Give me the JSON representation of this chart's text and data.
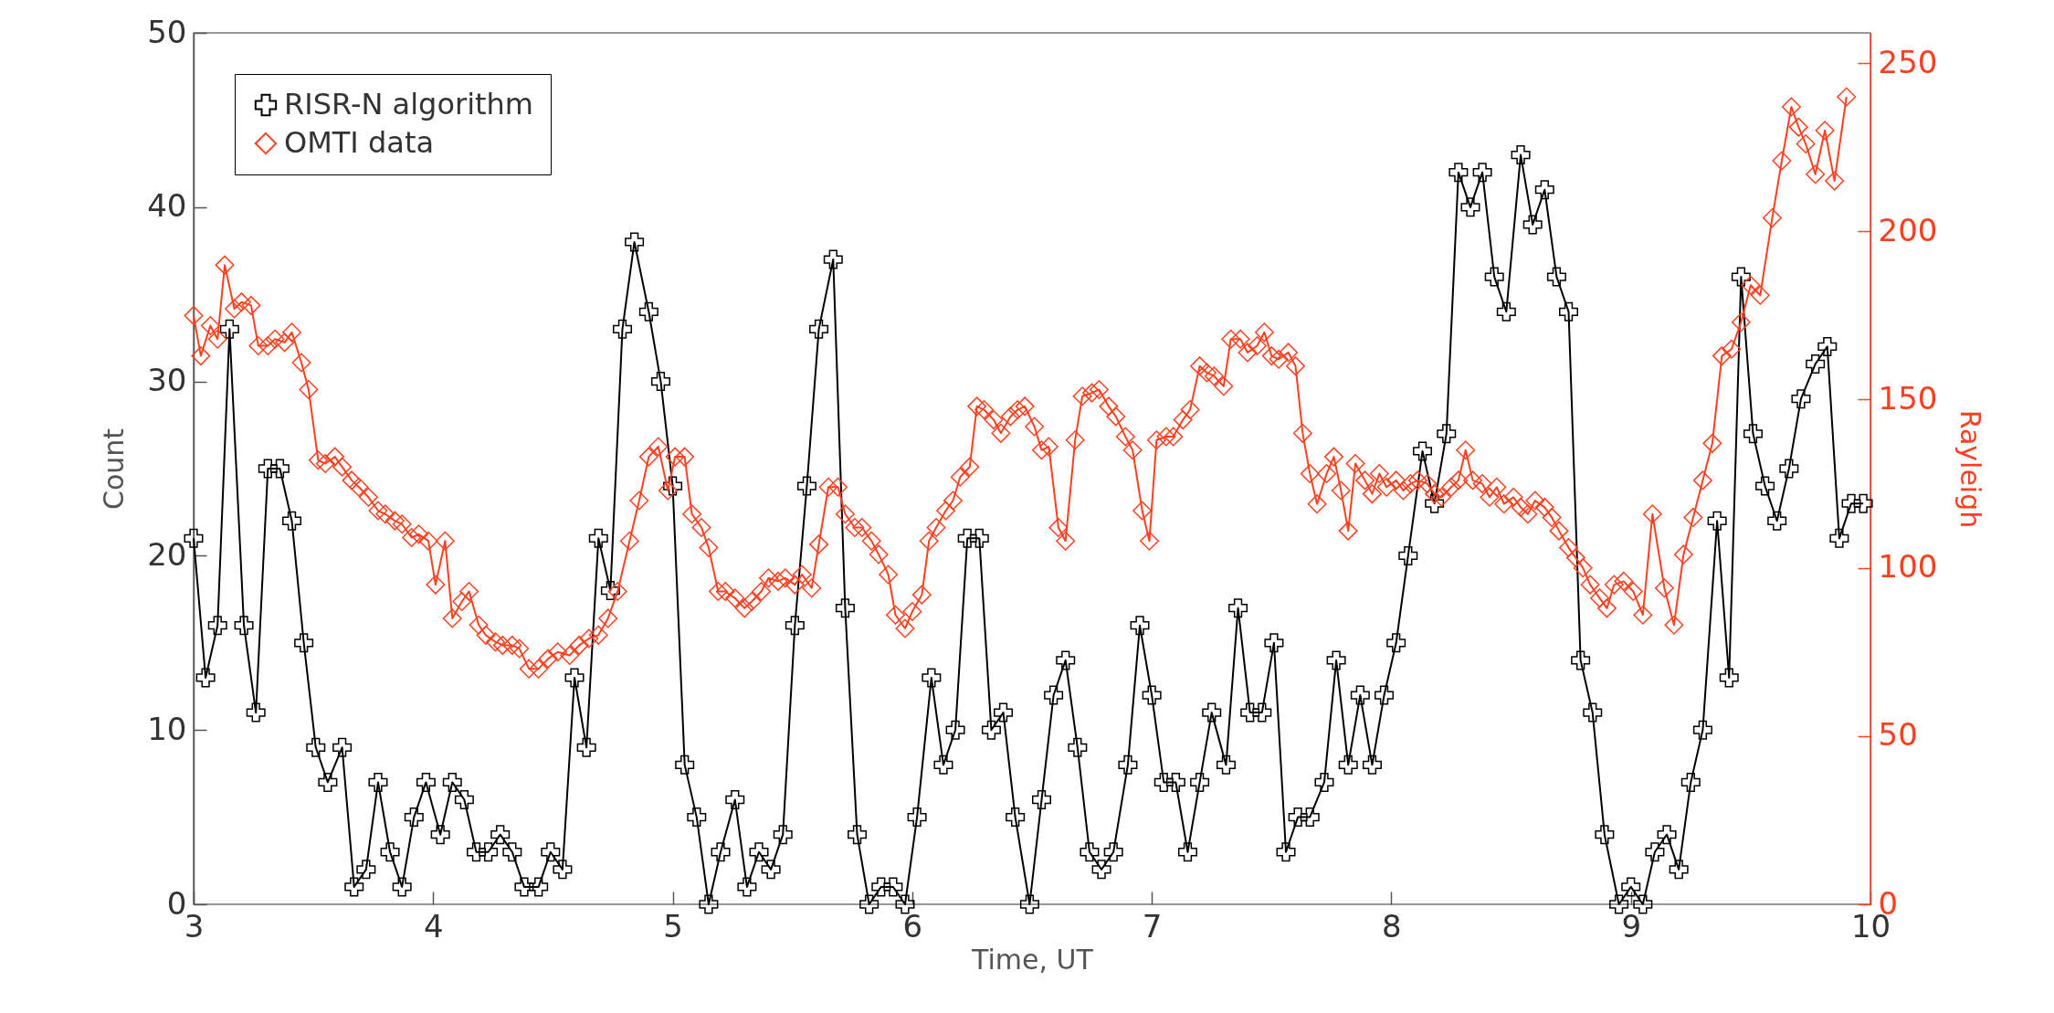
{
  "chart_data": {
    "type": "line",
    "xlabel": "Time, UT",
    "ylabel": "Count",
    "y2label": "Rayleigh",
    "xlim": [
      3,
      10
    ],
    "xticks": [
      3,
      4,
      5,
      6,
      7,
      8,
      9,
      10
    ],
    "ylim": [
      0,
      50
    ],
    "yticks": [
      0,
      10,
      20,
      30,
      40,
      50
    ],
    "y2lim": [
      0,
      259
    ],
    "y2ticks": [
      0,
      50,
      100,
      150,
      200,
      250
    ],
    "grid": false,
    "legend": "top left",
    "series": [
      {
        "name": "RISR-N algorithm",
        "color": "#000000",
        "marker": "cross",
        "axis": "y",
        "x": [
          3.0,
          3.05,
          3.1,
          3.15,
          3.21,
          3.26,
          3.31,
          3.36,
          3.41,
          3.46,
          3.51,
          3.56,
          3.62,
          3.67,
          3.72,
          3.77,
          3.82,
          3.87,
          3.92,
          3.97,
          4.03,
          4.08,
          4.13,
          4.18,
          4.23,
          4.28,
          4.33,
          4.38,
          4.44,
          4.49,
          4.54,
          4.59,
          4.64,
          4.69,
          4.74,
          4.79,
          4.84,
          4.9,
          4.95,
          5.0,
          5.05,
          5.1,
          5.15,
          5.2,
          5.26,
          5.31,
          5.36,
          5.41,
          5.46,
          5.51,
          5.56,
          5.61,
          5.67,
          5.72,
          5.77,
          5.82,
          5.87,
          5.92,
          5.97,
          6.02,
          6.08,
          6.13,
          6.18,
          6.23,
          6.28,
          6.33,
          6.38,
          6.43,
          6.49,
          6.54,
          6.59,
          6.64,
          6.69,
          6.74,
          6.79,
          6.84,
          6.9,
          6.95,
          7.0,
          7.05,
          7.1,
          7.15,
          7.2,
          7.25,
          7.31,
          7.36,
          7.41,
          7.46,
          7.51,
          7.56,
          7.61,
          7.66,
          7.72,
          7.77,
          7.82,
          7.87,
          7.92,
          7.97,
          8.02,
          8.07,
          8.13,
          8.18,
          8.23,
          8.28,
          8.33,
          8.38,
          8.43,
          8.48,
          8.54,
          8.59,
          8.64,
          8.69,
          8.74,
          8.79,
          8.84,
          8.89,
          8.95,
          9.0,
          9.05,
          9.1,
          9.15,
          9.2,
          9.25,
          9.3,
          9.36,
          9.41,
          9.46,
          9.51,
          9.56,
          9.61,
          9.66,
          9.71,
          9.77,
          9.82,
          9.87,
          9.92,
          9.97
        ],
        "values": [
          21,
          13,
          16,
          33,
          16,
          11,
          25,
          25,
          22,
          15,
          9,
          7,
          9,
          1,
          2,
          7,
          3,
          1,
          5,
          7,
          4,
          7,
          6,
          3,
          3,
          4,
          3,
          1,
          1,
          3,
          2,
          13,
          9,
          21,
          18,
          33,
          38,
          34,
          30,
          24,
          8,
          5,
          0,
          3,
          6,
          1,
          3,
          2,
          4,
          16,
          24,
          33,
          37,
          17,
          4,
          0,
          1,
          1,
          0,
          5,
          13,
          8,
          10,
          21,
          21,
          10,
          11,
          5,
          0,
          6,
          12,
          14,
          9,
          3,
          2,
          3,
          8,
          16,
          12,
          7,
          7,
          3,
          7,
          11,
          8,
          17,
          11,
          11,
          15,
          3,
          5,
          5,
          7,
          14,
          8,
          12,
          8,
          12,
          15,
          20,
          26,
          23,
          27,
          42,
          40,
          42,
          36,
          34,
          43,
          39,
          41,
          36,
          34,
          14,
          11,
          4,
          0,
          1,
          0,
          3,
          4,
          2,
          7,
          10,
          22,
          13,
          36,
          27,
          24,
          22,
          25,
          29,
          31,
          32,
          21,
          23,
          23
        ]
      },
      {
        "name": "OMTI data",
        "color": "#ff4020",
        "marker": "diamond",
        "axis": "y2",
        "x": [
          3.0,
          3.03,
          3.07,
          3.1,
          3.13,
          3.17,
          3.2,
          3.24,
          3.27,
          3.31,
          3.34,
          3.38,
          3.41,
          3.45,
          3.48,
          3.52,
          3.55,
          3.59,
          3.62,
          3.66,
          3.69,
          3.73,
          3.77,
          3.8,
          3.84,
          3.87,
          3.91,
          3.94,
          3.98,
          4.01,
          4.05,
          4.08,
          4.12,
          4.15,
          4.19,
          4.22,
          4.26,
          4.29,
          4.33,
          4.36,
          4.4,
          4.44,
          4.48,
          4.52,
          4.57,
          4.61,
          4.65,
          4.69,
          4.73,
          4.77,
          4.82,
          4.86,
          4.9,
          4.94,
          4.98,
          5.01,
          5.05,
          5.08,
          5.12,
          5.15,
          5.19,
          5.22,
          5.26,
          5.3,
          5.33,
          5.37,
          5.4,
          5.44,
          5.47,
          5.51,
          5.54,
          5.58,
          5.61,
          5.65,
          5.69,
          5.72,
          5.76,
          5.79,
          5.83,
          5.86,
          5.9,
          5.93,
          5.97,
          6.0,
          6.04,
          6.07,
          6.1,
          6.14,
          6.17,
          6.2,
          6.24,
          6.27,
          6.3,
          6.34,
          6.37,
          6.41,
          6.44,
          6.47,
          6.51,
          6.54,
          6.57,
          6.61,
          6.64,
          6.68,
          6.71,
          6.75,
          6.78,
          6.82,
          6.85,
          6.89,
          6.92,
          6.96,
          6.99,
          7.02,
          7.06,
          7.09,
          7.13,
          7.16,
          7.2,
          7.23,
          7.26,
          7.3,
          7.33,
          7.37,
          7.4,
          7.44,
          7.47,
          7.5,
          7.53,
          7.57,
          7.6,
          7.63,
          7.66,
          7.69,
          7.73,
          7.76,
          7.79,
          7.82,
          7.85,
          7.89,
          7.92,
          7.95,
          7.98,
          8.02,
          8.05,
          8.08,
          8.11,
          8.15,
          8.18,
          8.21,
          8.25,
          8.28,
          8.31,
          8.34,
          8.38,
          8.41,
          8.44,
          8.47,
          8.51,
          8.54,
          8.57,
          8.6,
          8.64,
          8.67,
          8.7,
          8.74,
          8.77,
          8.8,
          8.83,
          8.87,
          8.9,
          8.93,
          8.97,
          9.01,
          9.05,
          9.09,
          9.14,
          9.18,
          9.22,
          9.26,
          9.3,
          9.34,
          9.38,
          9.42,
          9.46,
          9.5,
          9.54,
          9.59,
          9.63,
          9.67,
          9.7,
          9.73,
          9.77,
          9.81,
          9.85,
          9.9
        ],
        "values": [
          175,
          163,
          172,
          168,
          190,
          177,
          179,
          178,
          166,
          166,
          168,
          167,
          170,
          161,
          153,
          132,
          131,
          133,
          130,
          126,
          124,
          121,
          117,
          116,
          114,
          113,
          109,
          110,
          108,
          95,
          108,
          85,
          90,
          93,
          83,
          80,
          78,
          77,
          77,
          76,
          70,
          70,
          73,
          75,
          74,
          77,
          79,
          80,
          85,
          93,
          108,
          120,
          133,
          136,
          123,
          133,
          133,
          116,
          112,
          106,
          93,
          93,
          91,
          88,
          90,
          93,
          97,
          96,
          97,
          95,
          98,
          94,
          107,
          124,
          124,
          116,
          112,
          112,
          108,
          104,
          98,
          86,
          82,
          87,
          92,
          108,
          112,
          117,
          120,
          127,
          130,
          148,
          147,
          144,
          140,
          145,
          147,
          148,
          142,
          135,
          136,
          112,
          108,
          138,
          151,
          152,
          153,
          148,
          145,
          139,
          135,
          117,
          108,
          138,
          139,
          139,
          144,
          147,
          160,
          158,
          157,
          154,
          168,
          168,
          164,
          166,
          170,
          163,
          162,
          164,
          160,
          140,
          128,
          119,
          128,
          133,
          123,
          111,
          131,
          126,
          122,
          128,
          124,
          126,
          123,
          125,
          126,
          125,
          122,
          121,
          124,
          126,
          135,
          126,
          125,
          121,
          124,
          119,
          121,
          118,
          116,
          120,
          118,
          115,
          111,
          106,
          103,
          100,
          95,
          91,
          88,
          95,
          96,
          93,
          86,
          116,
          94,
          83,
          104,
          115,
          126,
          137,
          163,
          165,
          173,
          184,
          181,
          204,
          221,
          237,
          231,
          226,
          217,
          230,
          215,
          240
        ]
      }
    ]
  }
}
